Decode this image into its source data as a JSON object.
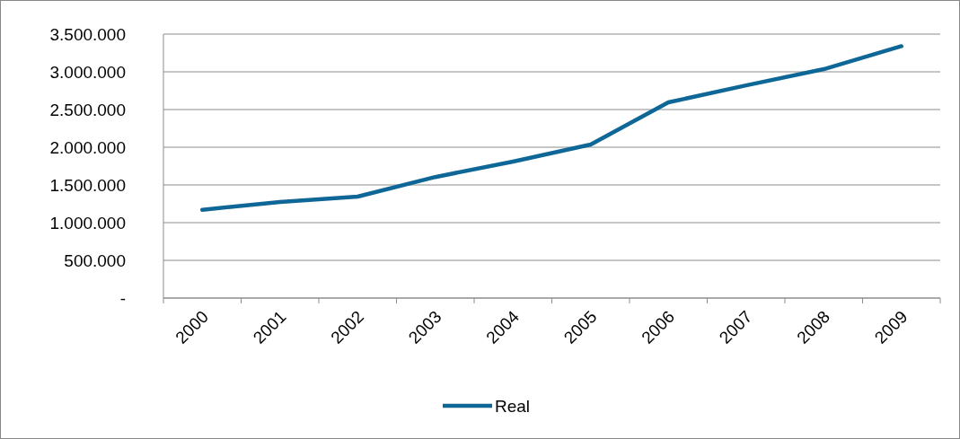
{
  "chart_data": {
    "type": "line",
    "categories": [
      "2000",
      "2001",
      "2002",
      "2003",
      "2004",
      "2005",
      "2006",
      "2007",
      "2008",
      "2009"
    ],
    "series": [
      {
        "name": "Real",
        "color": "#0e6797",
        "values": [
          1170000,
          1275000,
          1345000,
          1605000,
          1810000,
          2035000,
          2595000,
          2820000,
          3035000,
          3340000
        ]
      }
    ],
    "ylim": [
      0,
      3500000
    ],
    "yticks": [
      {
        "value": 0,
        "label": "-"
      },
      {
        "value": 500000,
        "label": "500.000"
      },
      {
        "value": 1000000,
        "label": "1.000.000"
      },
      {
        "value": 1500000,
        "label": "1.500.000"
      },
      {
        "value": 2000000,
        "label": "2.000.000"
      },
      {
        "value": 2500000,
        "label": "2.500.000"
      },
      {
        "value": 3000000,
        "label": "3.000.000"
      },
      {
        "value": 3500000,
        "label": "3.500.000"
      }
    ],
    "grid": "y",
    "legend": "bottom",
    "marker": "none",
    "line_style": "solid"
  }
}
